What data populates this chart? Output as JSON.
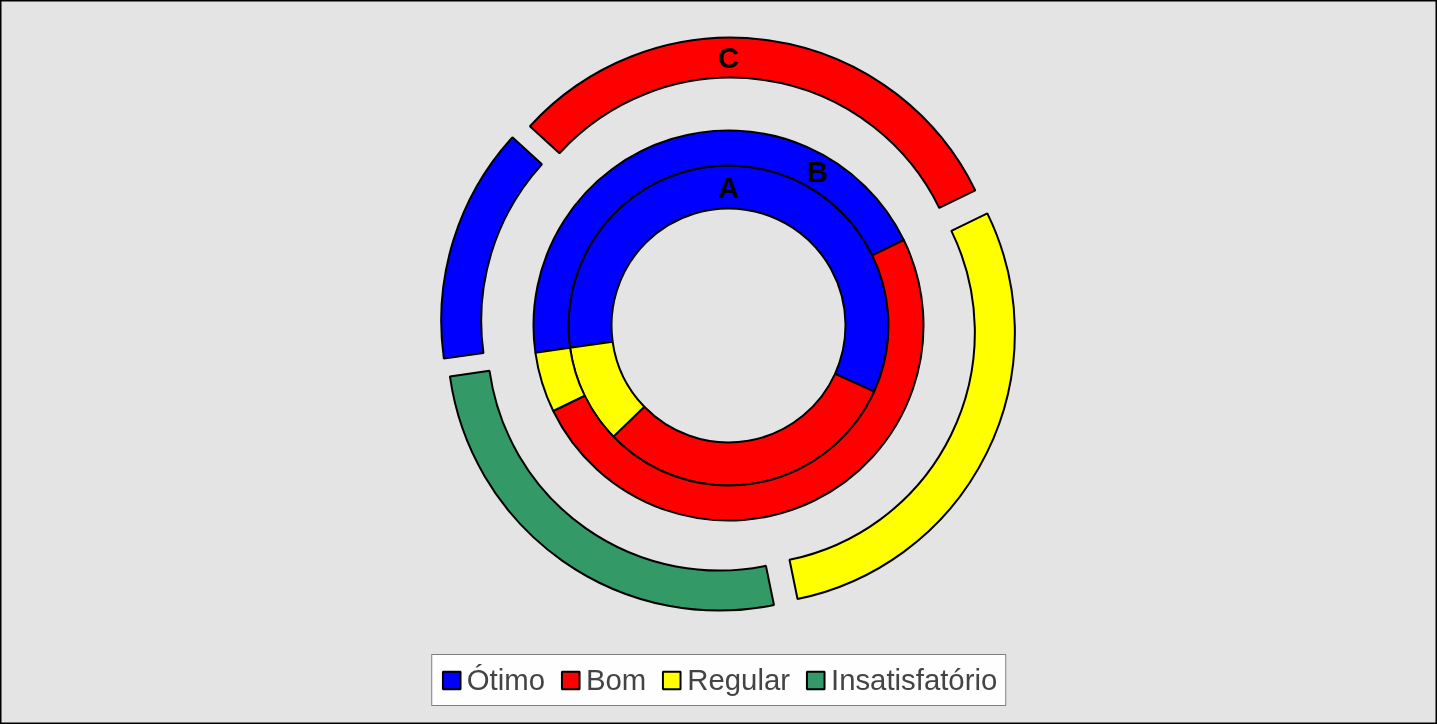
{
  "chart_data": {
    "type": "donut",
    "categories": [
      "Ótimo",
      "Bom",
      "Regular",
      "Insatisfatório"
    ],
    "colors": [
      "#0000ff",
      "#ff0000",
      "#ffff00",
      "#339966"
    ],
    "series": [
      {
        "name": "A",
        "values": [
          59,
          31,
          10,
          0
        ]
      },
      {
        "name": "B",
        "values": [
          45,
          50,
          5,
          0
        ]
      },
      {
        "name": "C",
        "values": [
          14,
          31,
          29,
          26
        ]
      }
    ],
    "legend": "bottom"
  }
}
